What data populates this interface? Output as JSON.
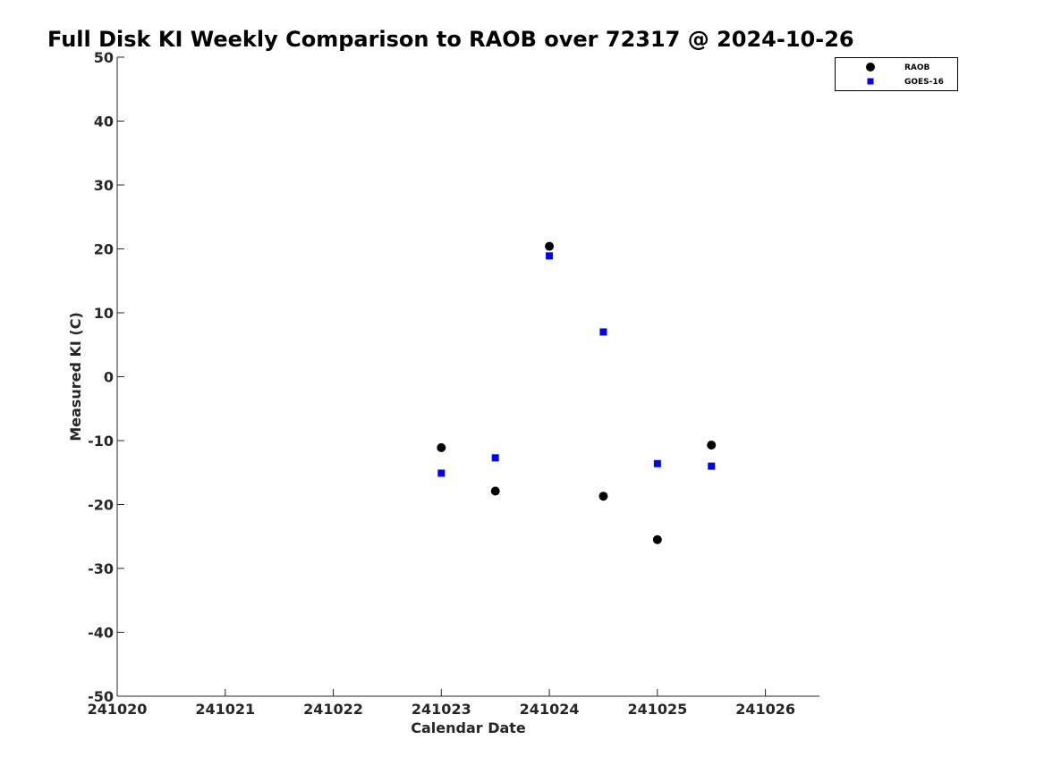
{
  "chart_data": {
    "type": "scatter",
    "title": "Full Disk KI Weekly Comparison to RAOB over 72317 @ 2024-10-26",
    "xlabel": "Calendar Date",
    "ylabel": "Measured KI (C)",
    "xlim": [
      241020,
      241026.5
    ],
    "ylim": [
      -50,
      50
    ],
    "x_ticks": [
      241020,
      241021,
      241022,
      241023,
      241024,
      241025,
      241026
    ],
    "x_tick_labels": [
      "241020",
      "241021",
      "241022",
      "241023",
      "241024",
      "241025",
      "241026"
    ],
    "y_ticks": [
      -50,
      -40,
      -30,
      -20,
      -10,
      0,
      10,
      20,
      30,
      40,
      50
    ],
    "y_tick_labels": [
      "-50",
      "-40",
      "-30",
      "-20",
      "-10",
      "0",
      "10",
      "20",
      "30",
      "40",
      "50"
    ],
    "grid": false,
    "legend_position": "top-right",
    "series": [
      {
        "name": "RAOB",
        "marker": "circle",
        "color": "#000000",
        "points": [
          {
            "x": 241023.0,
            "y": -11.1
          },
          {
            "x": 241023.5,
            "y": -17.9
          },
          {
            "x": 241024.0,
            "y": 20.4
          },
          {
            "x": 241024.5,
            "y": -18.7
          },
          {
            "x": 241025.0,
            "y": -25.5
          },
          {
            "x": 241025.5,
            "y": -10.7
          }
        ]
      },
      {
        "name": "GOES-16",
        "marker": "square",
        "color": "#0000ff",
        "points": [
          {
            "x": 241023.0,
            "y": -15.1
          },
          {
            "x": 241023.5,
            "y": -12.7
          },
          {
            "x": 241024.0,
            "y": 18.9
          },
          {
            "x": 241024.5,
            "y": 7.0
          },
          {
            "x": 241025.0,
            "y": -13.6
          },
          {
            "x": 241025.5,
            "y": -14.0
          }
        ]
      }
    ]
  }
}
